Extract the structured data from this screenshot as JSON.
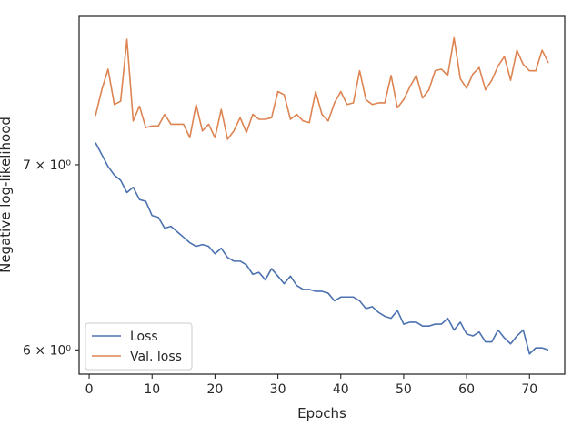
{
  "chart_data": {
    "type": "line",
    "title": "",
    "xlabel": "Epochs",
    "ylabel": "Negative log-likelihood",
    "yscale": "log",
    "grid": false,
    "legend_position": "lower-left",
    "xlim": [
      -1.6,
      75.6
    ],
    "ylim": [
      5.88,
      7.92
    ],
    "x_ticks": [
      0,
      10,
      20,
      30,
      40,
      50,
      60,
      70
    ],
    "x_tick_labels": [
      "0",
      "10",
      "20",
      "30",
      "40",
      "50",
      "60",
      "70"
    ],
    "y_ticks": [
      6,
      7
    ],
    "y_tick_labels": [
      "6 × 10⁰",
      "7 × 10⁰"
    ],
    "x": [
      1,
      2,
      3,
      4,
      5,
      6,
      7,
      8,
      9,
      10,
      11,
      12,
      13,
      14,
      15,
      16,
      17,
      18,
      19,
      20,
      21,
      22,
      23,
      24,
      25,
      26,
      27,
      28,
      29,
      30,
      31,
      32,
      33,
      34,
      35,
      36,
      37,
      38,
      39,
      40,
      41,
      42,
      43,
      44,
      45,
      46,
      47,
      48,
      49,
      50,
      51,
      52,
      53,
      54,
      55,
      56,
      57,
      58,
      59,
      60,
      61,
      62,
      63,
      64,
      65,
      66,
      67,
      68,
      69,
      70,
      71,
      72,
      73
    ],
    "series": [
      {
        "name": "Loss",
        "color": "#4c72b0",
        "values": [
          7.13,
          7.06,
          6.99,
          6.94,
          6.91,
          6.84,
          6.87,
          6.8,
          6.79,
          6.71,
          6.7,
          6.64,
          6.65,
          6.62,
          6.59,
          6.56,
          6.54,
          6.55,
          6.54,
          6.5,
          6.53,
          6.48,
          6.46,
          6.46,
          6.44,
          6.39,
          6.4,
          6.36,
          6.42,
          6.38,
          6.34,
          6.38,
          6.33,
          6.31,
          6.31,
          6.3,
          6.3,
          6.29,
          6.25,
          6.27,
          6.27,
          6.27,
          6.25,
          6.21,
          6.22,
          6.19,
          6.17,
          6.16,
          6.2,
          6.13,
          6.14,
          6.14,
          6.12,
          6.12,
          6.13,
          6.13,
          6.16,
          6.1,
          6.14,
          6.08,
          6.07,
          6.09,
          6.04,
          6.04,
          6.1,
          6.06,
          6.03,
          6.07,
          6.1,
          5.98,
          6.01,
          6.01,
          6.0
        ]
      },
      {
        "name": "Val. loss",
        "color": "#dd8452",
        "values": [
          7.29,
          7.45,
          7.58,
          7.36,
          7.38,
          7.77,
          7.26,
          7.35,
          7.22,
          7.23,
          7.23,
          7.3,
          7.24,
          7.24,
          7.24,
          7.16,
          7.36,
          7.2,
          7.24,
          7.16,
          7.33,
          7.15,
          7.2,
          7.28,
          7.19,
          7.3,
          7.27,
          7.27,
          7.28,
          7.44,
          7.42,
          7.27,
          7.3,
          7.26,
          7.25,
          7.44,
          7.3,
          7.26,
          7.37,
          7.44,
          7.36,
          7.37,
          7.57,
          7.39,
          7.36,
          7.37,
          7.37,
          7.54,
          7.34,
          7.39,
          7.47,
          7.54,
          7.4,
          7.45,
          7.57,
          7.58,
          7.54,
          7.78,
          7.52,
          7.46,
          7.55,
          7.59,
          7.45,
          7.51,
          7.6,
          7.66,
          7.51,
          7.7,
          7.61,
          7.57,
          7.57,
          7.7,
          7.62
        ]
      }
    ]
  }
}
